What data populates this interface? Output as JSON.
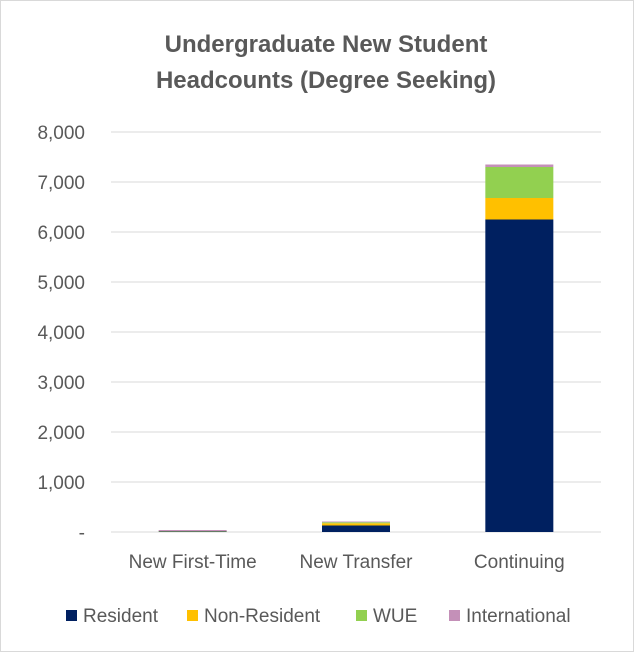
{
  "chart_data": {
    "type": "bar",
    "stacked": true,
    "title": [
      "Undergraduate New Student",
      "Headcounts (Degree Seeking)"
    ],
    "categories": [
      "New First-Time",
      "New Transfer",
      "Continuing"
    ],
    "series": [
      {
        "name": "Resident",
        "color": "#002060",
        "values": [
          10,
          130,
          6250
        ]
      },
      {
        "name": "Non-Resident",
        "color": "#FFC000",
        "values": [
          5,
          45,
          430
        ]
      },
      {
        "name": "WUE",
        "color": "#92D050",
        "values": [
          5,
          20,
          620
        ]
      },
      {
        "name": "International",
        "color": "#C490B8",
        "values": [
          20,
          15,
          50
        ]
      }
    ],
    "ylim": [
      0,
      8000
    ],
    "y_ticks": [
      0,
      1000,
      2000,
      3000,
      4000,
      5000,
      6000,
      7000,
      8000
    ],
    "y_tick_labels": [
      "-",
      "1,000",
      "2,000",
      "3,000",
      "4,000",
      "5,000",
      "6,000",
      "7,000",
      "8,000"
    ],
    "grid": true,
    "legend_position": "bottom"
  }
}
